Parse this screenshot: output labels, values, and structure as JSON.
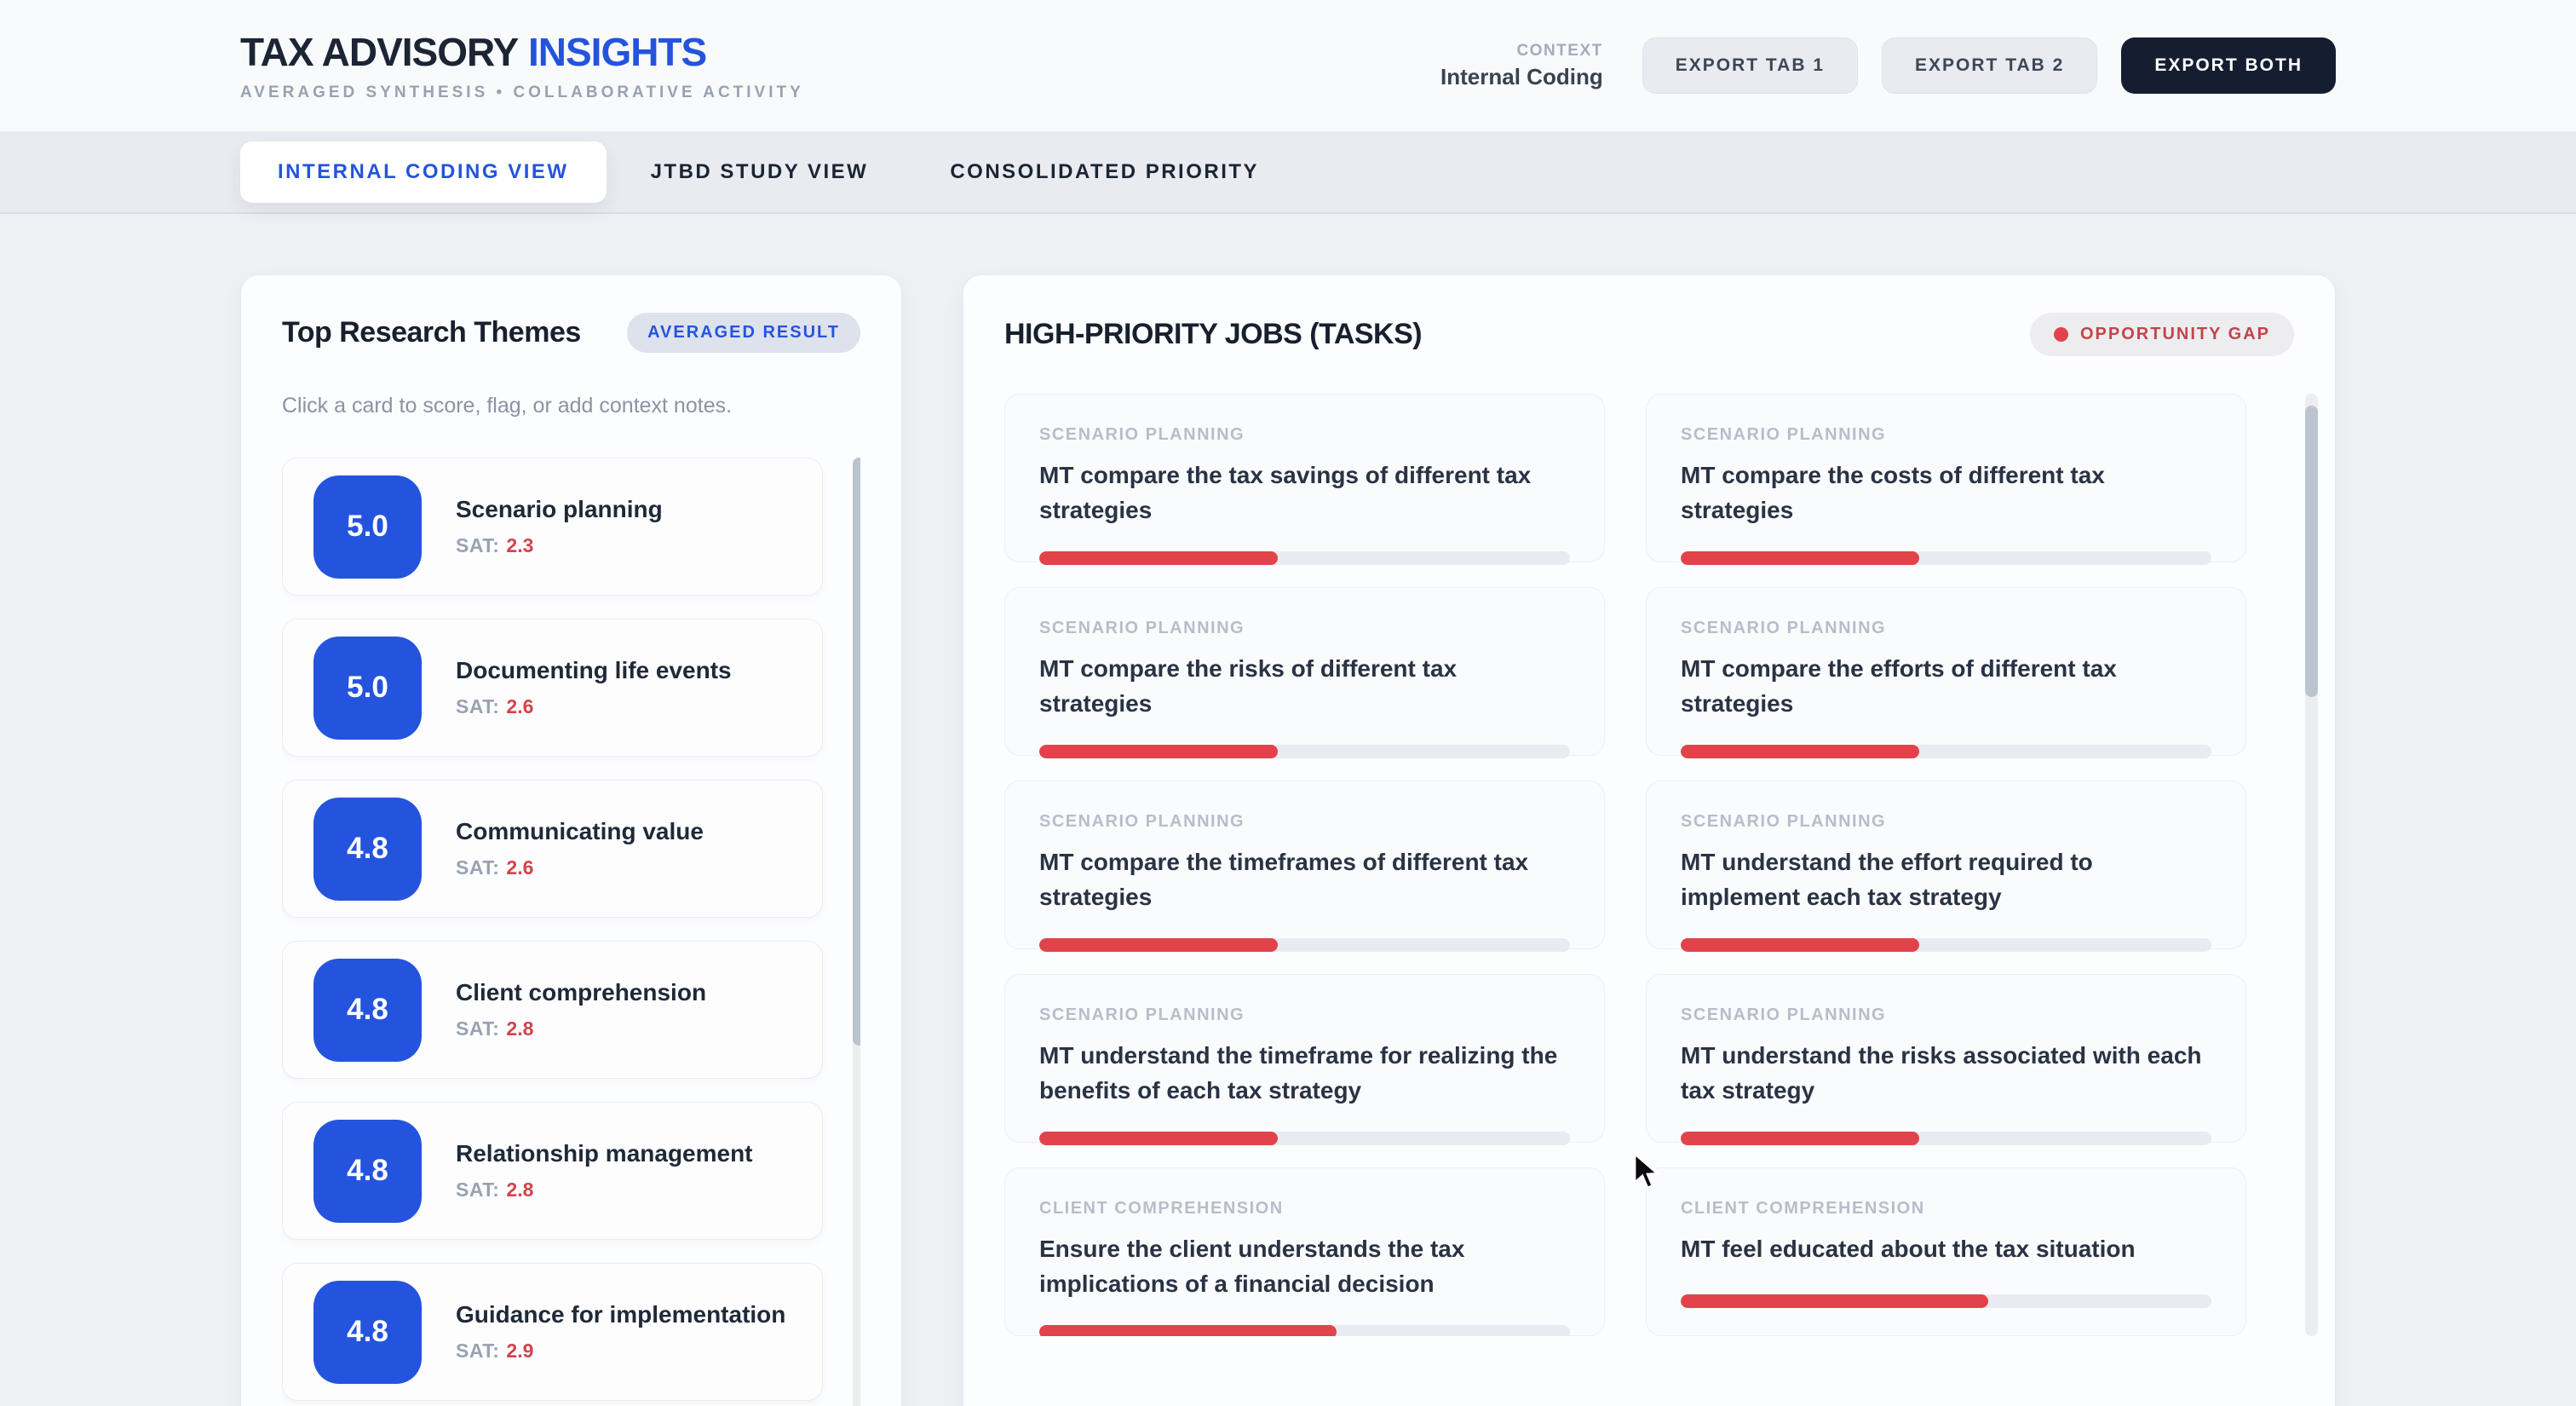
{
  "header": {
    "title_primary": "TAX ADVISORY",
    "title_accent": "INSIGHTS",
    "subtitle": "AVERAGED SYNTHESIS • COLLABORATIVE ACTIVITY",
    "context_label": "CONTEXT",
    "context_value": "Internal Coding",
    "export_tab1_label": "EXPORT TAB 1",
    "export_tab2_label": "EXPORT TAB 2",
    "export_both_label": "EXPORT BOTH"
  },
  "tabs": [
    {
      "label": "INTERNAL CODING VIEW",
      "active": true
    },
    {
      "label": "JTBD STUDY VIEW",
      "active": false
    },
    {
      "label": "CONSOLIDATED PRIORITY",
      "active": false
    }
  ],
  "themes_panel": {
    "title": "Top Research Themes",
    "badge": "AVERAGED RESULT",
    "hint": "Click a card to score, flag, or add context notes.",
    "sat_label": "SAT:",
    "items": [
      {
        "score": "5.0",
        "title": "Scenario planning",
        "sat": "2.3"
      },
      {
        "score": "5.0",
        "title": "Documenting life events",
        "sat": "2.6"
      },
      {
        "score": "4.8",
        "title": "Communicating value",
        "sat": "2.6"
      },
      {
        "score": "4.8",
        "title": "Client comprehension",
        "sat": "2.8"
      },
      {
        "score": "4.8",
        "title": "Relationship management",
        "sat": "2.8"
      },
      {
        "score": "4.8",
        "title": "Guidance for implementation",
        "sat": "2.9"
      }
    ]
  },
  "jobs_panel": {
    "title": "HIGH-PRIORITY JOBS (TASKS)",
    "legend": "OPPORTUNITY GAP",
    "items": [
      {
        "category": "SCENARIO PLANNING",
        "title": "MT compare the tax savings of different tax strategies",
        "gap_pct": 45
      },
      {
        "category": "SCENARIO PLANNING",
        "title": "MT compare the costs of different tax strategies",
        "gap_pct": 45
      },
      {
        "category": "SCENARIO PLANNING",
        "title": "MT compare the risks of different tax strategies",
        "gap_pct": 45
      },
      {
        "category": "SCENARIO PLANNING",
        "title": "MT compare the efforts of different tax strategies",
        "gap_pct": 45
      },
      {
        "category": "SCENARIO PLANNING",
        "title": "MT compare the timeframes of different tax strategies",
        "gap_pct": 45
      },
      {
        "category": "SCENARIO PLANNING",
        "title": "MT understand the effort required to implement each tax strategy",
        "gap_pct": 45
      },
      {
        "category": "SCENARIO PLANNING",
        "title": "MT understand the timeframe for realizing the benefits of each tax strategy",
        "gap_pct": 45
      },
      {
        "category": "SCENARIO PLANNING",
        "title": "MT understand the risks associated with each tax strategy",
        "gap_pct": 45
      },
      {
        "category": "CLIENT COMPREHENSION",
        "title": "Ensure the client understands the tax implications of a financial decision",
        "gap_pct": 56
      },
      {
        "category": "CLIENT COMPREHENSION",
        "title": "MT feel educated about the tax situation",
        "gap_pct": 58
      }
    ]
  },
  "colors": {
    "accent_blue": "#2454dd",
    "gap_red": "#e2434b",
    "dark_button": "#141e30"
  }
}
